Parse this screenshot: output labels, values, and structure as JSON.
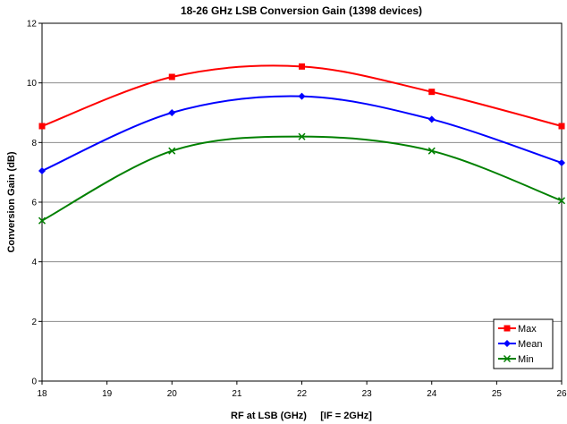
{
  "chart_data": {
    "type": "line",
    "title": "18-26 GHz LSB Conversion Gain (1398 devices)",
    "xlabel": "RF at LSB (GHz)     [IF = 2GHz]",
    "ylabel": "Conversion Gain (dB)",
    "xlim": [
      18,
      26
    ],
    "ylim": [
      0,
      12
    ],
    "xticks": [
      18,
      19,
      20,
      21,
      22,
      23,
      24,
      25,
      26
    ],
    "yticks": [
      0,
      2,
      4,
      6,
      8,
      10,
      12
    ],
    "grid": "horizontal",
    "legend_position": "bottom-right",
    "x": [
      18,
      20,
      22,
      24,
      26
    ],
    "series": [
      {
        "name": "Max",
        "color": "#ff0000",
        "marker": "square",
        "values": [
          8.55,
          10.2,
          10.55,
          9.7,
          8.55
        ]
      },
      {
        "name": "Mean",
        "color": "#0000ff",
        "marker": "diamond",
        "values": [
          7.05,
          9.0,
          9.55,
          8.78,
          7.32
        ]
      },
      {
        "name": "Min",
        "color": "#008000",
        "marker": "x",
        "values": [
          5.38,
          7.72,
          8.2,
          7.72,
          6.05
        ]
      }
    ]
  }
}
